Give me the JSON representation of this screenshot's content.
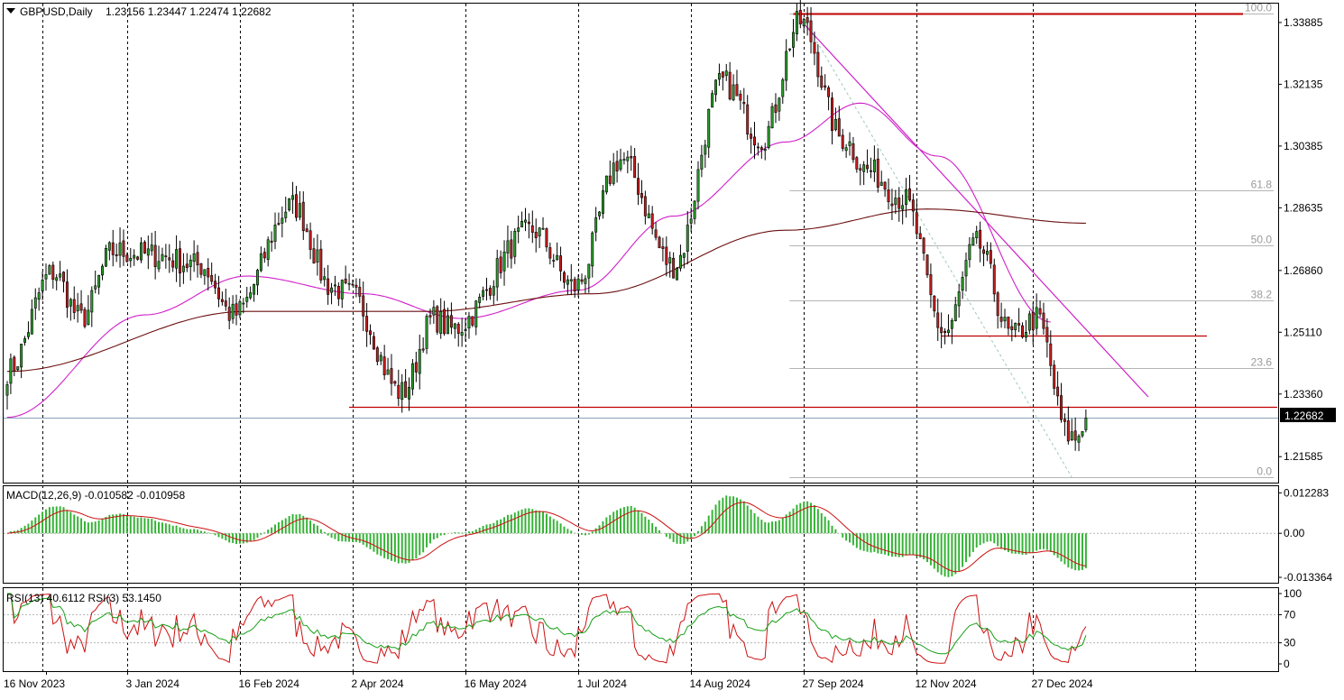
{
  "header": {
    "symbol": "GBPUSD,Daily",
    "ohlc": "1.23156 1.23447 1.22474 1.22682"
  },
  "macd_label": "MACD(12,26,9) -0.010582 -0.010958",
  "rsi_label": "RSI(13) 40.6112  RSI(3) 53.1450",
  "current_price": "1.22682",
  "colors": {
    "bull": "#2a9d2a",
    "bear": "#c41e1e",
    "ma_fast": "#d020c8",
    "ma_slow": "#6b0f0f",
    "level_line": "#c00000",
    "fib_line": "#b4b4b4",
    "macd_hist": "#33b233",
    "macd_signal": "#cc1111",
    "rsi_slow": "#16a016",
    "rsi_fast": "#cc1111",
    "price_badge": "#000000"
  },
  "chart_data": [
    {
      "type": "candlestick",
      "title": "GBPUSD,Daily",
      "y_ticks": [
        "1.33885",
        "1.32135",
        "1.30385",
        "1.28635",
        "1.26860",
        "1.25110",
        "1.23360",
        "1.21585"
      ],
      "ylim": [
        1.2085,
        1.3442
      ],
      "x_tick_labels": [
        "16 Nov 2023",
        "3 Jan 2024",
        "16 Feb 2024",
        "2 Apr 2024",
        "16 May 2024",
        "1 Jul 2024",
        "14 Aug 2024",
        "27 Sep 2024",
        "12 Nov 2024",
        "27 Dec 2024"
      ],
      "grid": "vertical dashed",
      "approx_close_path": [
        {
          "date": "2023-11-16",
          "close": 1.24
        },
        {
          "date": "2023-12-05",
          "close": 1.268
        },
        {
          "date": "2023-12-15",
          "close": 1.255
        },
        {
          "date": "2023-12-28",
          "close": 1.274
        },
        {
          "date": "2024-01-12",
          "close": 1.273
        },
        {
          "date": "2024-02-01",
          "close": 1.27
        },
        {
          "date": "2024-02-14",
          "close": 1.256
        },
        {
          "date": "2024-03-08",
          "close": 1.287
        },
        {
          "date": "2024-03-25",
          "close": 1.264
        },
        {
          "date": "2024-04-01",
          "close": 1.262
        },
        {
          "date": "2024-04-22",
          "close": 1.234
        },
        {
          "date": "2024-05-03",
          "close": 1.255
        },
        {
          "date": "2024-05-10",
          "close": 1.252
        },
        {
          "date": "2024-06-12",
          "close": 1.28
        },
        {
          "date": "2024-06-28",
          "close": 1.264
        },
        {
          "date": "2024-07-17",
          "close": 1.3
        },
        {
          "date": "2024-08-07",
          "close": 1.27
        },
        {
          "date": "2024-08-27",
          "close": 1.322
        },
        {
          "date": "2024-09-11",
          "close": 1.306
        },
        {
          "date": "2024-09-26",
          "close": 1.339
        },
        {
          "date": "2024-10-14",
          "close": 1.306
        },
        {
          "date": "2024-10-23",
          "close": 1.297
        },
        {
          "date": "2024-11-06",
          "close": 1.289
        },
        {
          "date": "2024-11-22",
          "close": 1.251
        },
        {
          "date": "2024-12-05",
          "close": 1.276
        },
        {
          "date": "2024-12-19",
          "close": 1.25
        },
        {
          "date": "2024-12-30",
          "close": 1.255
        },
        {
          "date": "2025-01-10",
          "close": 1.222
        },
        {
          "date": "2025-01-14",
          "close": 1.221
        },
        {
          "date": "2025-01-17",
          "close": 1.2268
        }
      ],
      "moving_averages": [
        {
          "name": "",
          "role": "fast",
          "approx_path": [
            {
              "date": "2023-11-16",
              "close": 1.227
            },
            {
              "date": "2024-01-10",
              "close": 1.256
            },
            {
              "date": "2024-02-20",
              "close": 1.267
            },
            {
              "date": "2024-04-05",
              "close": 1.262
            },
            {
              "date": "2024-05-15",
              "close": 1.255
            },
            {
              "date": "2024-07-01",
              "close": 1.263
            },
            {
              "date": "2024-08-07",
              "close": 1.284
            },
            {
              "date": "2024-09-20",
              "close": 1.305
            },
            {
              "date": "2024-10-20",
              "close": 1.316
            },
            {
              "date": "2024-11-20",
              "close": 1.301
            },
            {
              "date": "2025-01-03",
              "close": 1.254
            }
          ]
        },
        {
          "name": "",
          "role": "slow",
          "approx_path": [
            {
              "date": "2023-11-16",
              "close": 1.24
            },
            {
              "date": "2024-02-20",
              "close": 1.257
            },
            {
              "date": "2024-05-01",
              "close": 1.257
            },
            {
              "date": "2024-07-05",
              "close": 1.262
            },
            {
              "date": "2024-09-20",
              "close": 1.28
            },
            {
              "date": "2024-11-15",
              "close": 1.286
            },
            {
              "date": "2025-01-17",
              "close": 1.282
            }
          ]
        }
      ],
      "horizontal_levels": [
        1.3415,
        1.2502,
        1.23
      ],
      "fibonacci_retracement": {
        "high": 1.3415,
        "low": 1.21,
        "levels": [
          "100.0",
          "61.8",
          "50.0",
          "38.2",
          "23.6",
          "0.0"
        ]
      },
      "last_price": 1.22682
    },
    {
      "type": "bar",
      "title": "MACD(12,26,9) -0.010582 -0.010958",
      "y_ticks": [
        "0.012283",
        "0.00",
        "-0.013364"
      ],
      "ylim": [
        -0.015,
        0.0143
      ],
      "main": -0.010582,
      "signal": -0.010958
    },
    {
      "type": "line",
      "title": "RSI(13) 40.6112  RSI(3) 53.1450",
      "y_ticks": [
        "100",
        "70",
        "30",
        "0"
      ],
      "ylim": [
        0,
        100
      ],
      "levels": [
        70,
        30
      ],
      "series": [
        {
          "name": "RSI(13)",
          "last": 40.6112
        },
        {
          "name": "RSI(3)",
          "last": 53.145
        }
      ]
    }
  ]
}
